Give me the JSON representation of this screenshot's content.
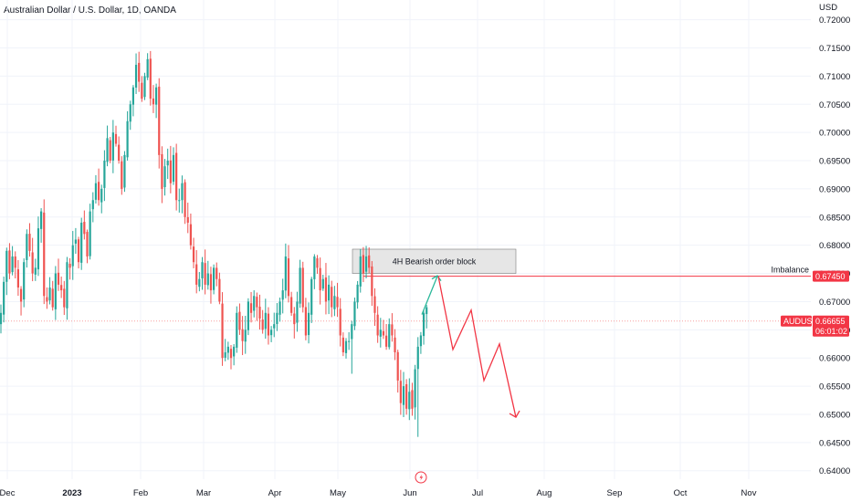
{
  "header": {
    "title": "Australian Dollar / U.S. Dollar, 1D, OANDA",
    "currency": "USD"
  },
  "colors": {
    "up": "#26a69a",
    "down": "#ef5350",
    "grid": "#f0f3fa",
    "level": "#f23645",
    "order_block_fill": "#e6e6e6",
    "order_block_border": "#7b7b7b",
    "current_price_line": "#f7a0a0"
  },
  "chart_data": {
    "type": "candlestick",
    "symbol": "AUDUSD",
    "timeframe": "1D",
    "y_axis": {
      "ylim": [
        0.6385,
        0.7235
      ],
      "ticks": [
        "0.72000",
        "0.71500",
        "0.71000",
        "0.70500",
        "0.70000",
        "0.69500",
        "0.69000",
        "0.68500",
        "0.68000",
        "0.67500",
        "0.67000",
        "0.66500",
        "0.66000",
        "0.65500",
        "0.65000",
        "0.64500",
        "0.64000"
      ]
    },
    "x_axis": {
      "ticks": [
        {
          "label": "Dec",
          "bold": false
        },
        {
          "label": "2023",
          "bold": true
        },
        {
          "label": "Feb",
          "bold": false
        },
        {
          "label": "Mar",
          "bold": false
        },
        {
          "label": "Apr",
          "bold": false
        },
        {
          "label": "May",
          "bold": false
        },
        {
          "label": "Jun",
          "bold": false
        },
        {
          "label": "Jul",
          "bold": false
        },
        {
          "label": "Aug",
          "bold": false
        },
        {
          "label": "Sep",
          "bold": false
        },
        {
          "label": "Oct",
          "bold": false
        },
        {
          "label": "Nov",
          "bold": false
        }
      ]
    },
    "closes": [
      0.668,
      0.6735,
      0.679,
      0.675,
      0.678,
      0.676,
      0.6725,
      0.67,
      0.677,
      0.682,
      0.679,
      0.675,
      0.676,
      0.683,
      0.686,
      0.671,
      0.67,
      0.6725,
      0.669,
      0.675,
      0.673,
      0.672,
      0.669,
      0.677,
      0.676,
      0.68,
      0.681,
      0.677,
      0.684,
      0.682,
      0.678,
      0.686,
      0.688,
      0.691,
      0.688,
      0.69,
      0.695,
      0.699,
      0.695,
      0.7,
      0.698,
      0.695,
      0.69,
      0.696,
      0.702,
      0.705,
      0.708,
      0.712,
      0.709,
      0.706,
      0.71,
      0.713,
      0.706,
      0.705,
      0.708,
      0.696,
      0.69,
      0.694,
      0.695,
      0.691,
      0.696,
      0.688,
      0.688,
      0.691,
      0.685,
      0.684,
      0.68,
      0.677,
      0.673,
      0.674,
      0.677,
      0.673,
      0.675,
      0.672,
      0.676,
      0.674,
      0.67,
      0.66,
      0.661,
      0.662,
      0.66,
      0.662,
      0.668,
      0.665,
      0.663,
      0.665,
      0.67,
      0.668,
      0.671,
      0.669,
      0.667,
      0.665,
      0.668,
      0.664,
      0.665,
      0.666,
      0.668,
      0.67,
      0.672,
      0.678,
      0.671,
      0.668,
      0.666,
      0.67,
      0.676,
      0.669,
      0.664,
      0.668,
      0.674,
      0.678,
      0.676,
      0.672,
      0.674,
      0.67,
      0.673,
      0.669,
      0.671,
      0.669,
      0.664,
      0.661,
      0.663,
      0.663,
      0.666,
      0.67,
      0.673,
      0.678,
      0.675,
      0.678,
      0.676,
      0.671,
      0.668,
      0.664,
      0.665,
      0.664,
      0.662,
      0.666,
      0.664,
      0.661,
      0.656,
      0.652,
      0.655,
      0.651,
      0.654,
      0.651,
      0.658,
      0.662,
      0.664,
      0.668,
      0.669
    ],
    "extra_lows": {
      "145": 0.646,
      "122": 0.6572
    },
    "annotations": {
      "order_block": {
        "label": "4H Bearish order block",
        "y_top": 0.6793,
        "y_bottom": 0.675
      },
      "imbalance": {
        "label": "Imbalance",
        "price": "0.67450",
        "value": 0.6745
      },
      "current": {
        "symbol": "AUDUSD",
        "price": "0.66655",
        "countdown": "06:01:02",
        "value": 0.66655
      },
      "projection_up": [
        [
          0.6677
        ],
        [
          0.6745
        ]
      ],
      "projection_down": [
        0.6745,
        0.6615,
        0.6685,
        0.656,
        0.6625,
        0.6495
      ]
    }
  }
}
